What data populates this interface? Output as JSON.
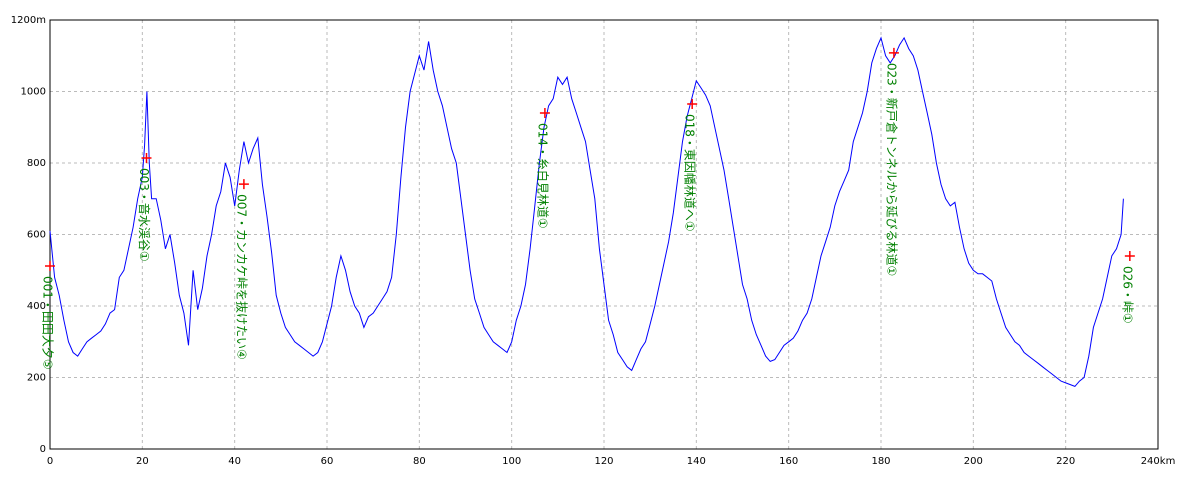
{
  "chart_data": {
    "type": "line",
    "color": "#0000ff",
    "grid": true,
    "xlim": [
      0,
      240
    ],
    "ylim": [
      0,
      1200
    ],
    "xticks": [
      0,
      20,
      40,
      60,
      80,
      100,
      120,
      140,
      160,
      180,
      200,
      220,
      {
        "value": 240,
        "label": "240km"
      }
    ],
    "yticks": [
      0,
      200,
      400,
      600,
      800,
      1000,
      {
        "value": 1200,
        "label": "1200m"
      }
    ],
    "x": [
      0,
      1,
      2,
      3,
      4,
      5,
      6,
      7,
      8,
      9,
      10,
      11,
      12,
      13,
      14,
      15,
      16,
      17,
      18,
      19,
      20,
      20.5,
      21,
      21.5,
      22,
      23,
      24,
      25,
      26,
      27,
      28,
      29,
      30,
      31,
      32,
      33,
      34,
      35,
      36,
      37,
      38,
      39,
      40,
      41,
      42,
      43,
      44,
      45,
      46,
      47,
      48,
      49,
      50,
      51,
      52,
      53,
      54,
      55,
      56,
      57,
      58,
      59,
      60,
      61,
      62,
      63,
      64,
      65,
      66,
      67,
      68,
      69,
      70,
      71,
      72,
      73,
      74,
      75,
      76,
      77,
      78,
      79,
      80,
      81,
      82,
      83,
      84,
      85,
      86,
      87,
      88,
      89,
      90,
      91,
      92,
      93,
      94,
      95,
      96,
      97,
      98,
      99,
      100,
      101,
      102,
      103,
      104,
      105,
      106,
      107,
      108,
      109,
      110,
      111,
      112,
      113,
      114,
      115,
      116,
      117,
      118,
      119,
      120,
      121,
      122,
      123,
      124,
      125,
      126,
      127,
      128,
      129,
      130,
      131,
      132,
      133,
      134,
      135,
      136,
      137,
      138,
      139,
      140,
      141,
      142,
      143,
      144,
      145,
      146,
      147,
      148,
      149,
      150,
      151,
      152,
      153,
      154,
      155,
      156,
      157,
      158,
      159,
      160,
      161,
      162,
      163,
      164,
      165,
      166,
      167,
      168,
      169,
      170,
      171,
      172,
      173,
      174,
      175,
      176,
      177,
      178,
      179,
      180,
      181,
      182,
      183,
      184,
      185,
      186,
      187,
      188,
      189,
      190,
      191,
      192,
      193,
      194,
      195,
      196,
      197,
      198,
      199,
      200,
      201,
      202,
      203,
      204,
      205,
      206,
      207,
      208,
      209,
      210,
      211,
      212,
      213,
      214,
      215,
      216,
      217,
      218,
      219,
      220,
      221,
      222,
      223,
      224,
      225,
      226,
      227,
      228,
      229,
      230,
      231,
      232,
      232.5
    ],
    "values": [
      610,
      480,
      430,
      360,
      300,
      270,
      260,
      280,
      300,
      310,
      320,
      330,
      350,
      380,
      390,
      480,
      500,
      560,
      620,
      700,
      760,
      850,
      1000,
      800,
      700,
      700,
      640,
      560,
      600,
      520,
      430,
      380,
      290,
      500,
      390,
      450,
      540,
      600,
      680,
      720,
      800,
      760,
      680,
      780,
      860,
      800,
      840,
      870,
      740,
      650,
      550,
      430,
      380,
      340,
      320,
      300,
      290,
      280,
      270,
      260,
      270,
      300,
      350,
      400,
      480,
      540,
      500,
      440,
      400,
      380,
      340,
      370,
      380,
      400,
      420,
      440,
      480,
      600,
      760,
      900,
      1000,
      1050,
      1100,
      1060,
      1140,
      1060,
      1000,
      960,
      900,
      840,
      800,
      700,
      600,
      500,
      420,
      380,
      340,
      320,
      300,
      290,
      280,
      270,
      300,
      360,
      400,
      460,
      560,
      680,
      800,
      900,
      960,
      980,
      1040,
      1020,
      1040,
      980,
      940,
      900,
      860,
      780,
      700,
      560,
      460,
      360,
      320,
      270,
      250,
      230,
      220,
      250,
      280,
      300,
      350,
      400,
      460,
      520,
      580,
      660,
      760,
      860,
      930,
      980,
      1030,
      1010,
      990,
      960,
      900,
      840,
      780,
      700,
      620,
      540,
      460,
      420,
      360,
      320,
      290,
      260,
      245,
      250,
      270,
      290,
      300,
      310,
      330,
      360,
      380,
      420,
      480,
      540,
      580,
      620,
      680,
      720,
      750,
      780,
      860,
      900,
      940,
      1000,
      1080,
      1120,
      1150,
      1100,
      1080,
      1100,
      1130,
      1150,
      1120,
      1100,
      1060,
      1000,
      940,
      880,
      800,
      740,
      700,
      680,
      690,
      620,
      560,
      520,
      500,
      490,
      490,
      480,
      470,
      420,
      380,
      340,
      320,
      300,
      290,
      270,
      260,
      250,
      240,
      230,
      220,
      210,
      200,
      190,
      185,
      180,
      175,
      190,
      200,
      260,
      340,
      380,
      420,
      480,
      540,
      560,
      600,
      700
    ],
    "marker_color": "#ff0000",
    "label_color": "#008000",
    "annotations": [
      {
        "x": 0,
        "y": 512,
        "text": "001・田田大夕⑤"
      },
      {
        "x": 20.9,
        "y": 814,
        "text": "003・音水渓谷①"
      },
      {
        "x": 42,
        "y": 741,
        "text": "007・カンカケ峠を抜けたい④"
      },
      {
        "x": 107.2,
        "y": 940,
        "text": "014・糸白見林道①"
      },
      {
        "x": 139.1,
        "y": 965,
        "text": "018・東因幡林道へ①"
      },
      {
        "x": 182.8,
        "y": 1108,
        "text": "023・新戸倉トンネルから延びる林道①"
      },
      {
        "x": 233.9,
        "y": 540,
        "text": "026・峠①"
      }
    ]
  }
}
